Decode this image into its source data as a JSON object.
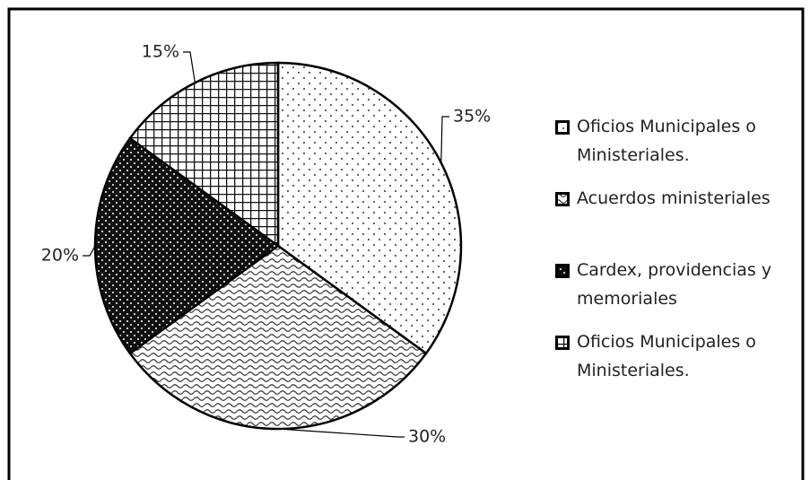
{
  "chart_data": {
    "type": "pie",
    "categories": [
      "Oficios Municipales o Ministeriales.",
      "Acuerdos ministeriales",
      "Cardex, providencias y memoriales",
      "Oficios Municipales o Ministeriales."
    ],
    "values": [
      35,
      30,
      20,
      15
    ],
    "value_labels": [
      "35%",
      "30%",
      "20%",
      "15%"
    ]
  }
}
